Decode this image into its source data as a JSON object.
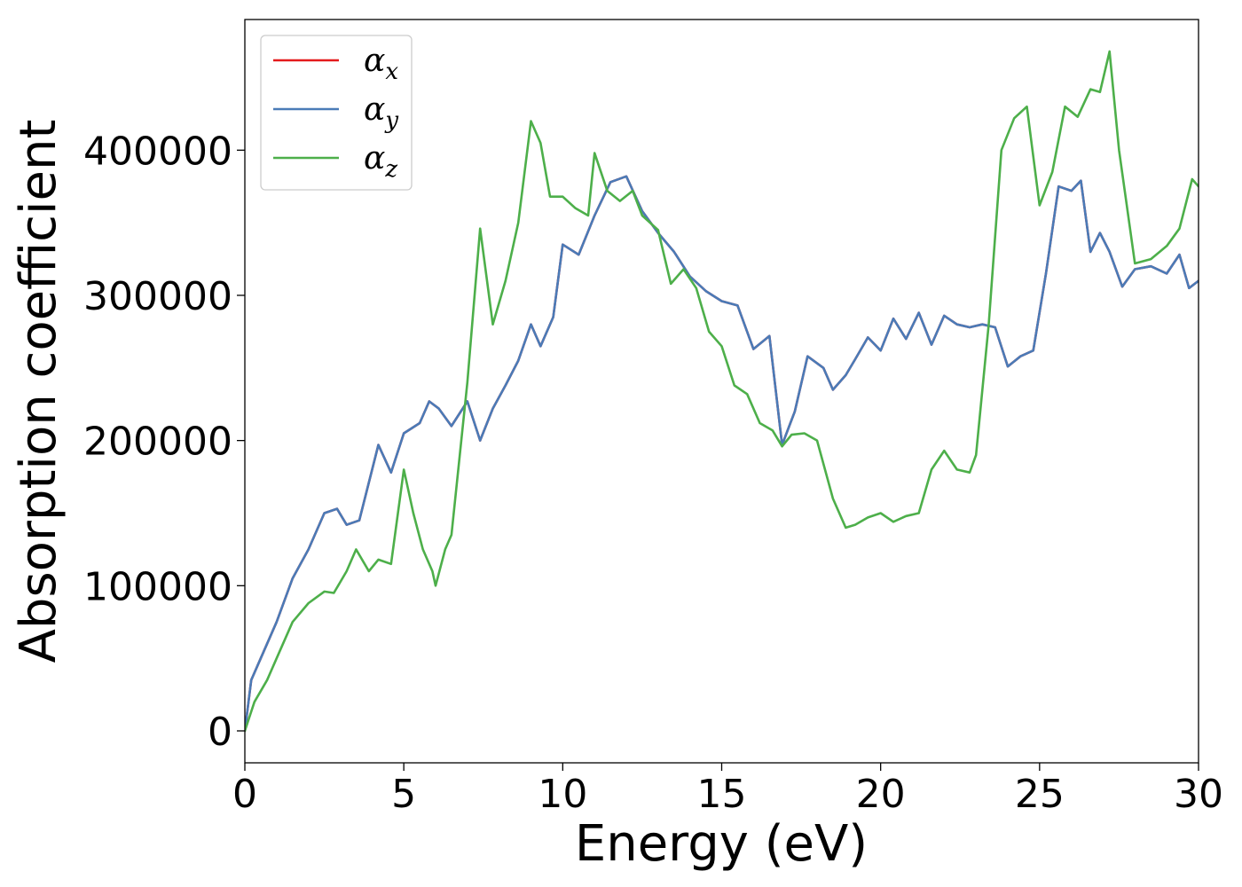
{
  "chart_data": {
    "type": "line",
    "xlabel": "Energy (eV)",
    "ylabel": "Absorption coefficient",
    "xlim": [
      0,
      30
    ],
    "ylim": [
      -22000,
      490000
    ],
    "xticks": [
      0,
      5,
      10,
      15,
      20,
      25,
      30
    ],
    "yticks": [
      0,
      100000,
      200000,
      300000,
      400000
    ],
    "grid": false,
    "legend_placement": "top-left",
    "series": [
      {
        "name": "α_x",
        "name_base": "α",
        "name_sub": "x",
        "color": "#e41a1c",
        "x": [
          0,
          0.2,
          0.5,
          1.0,
          1.5,
          2.0,
          2.5,
          2.9,
          3.2,
          3.6,
          4.2,
          4.6,
          5.0,
          5.5,
          5.8,
          6.1,
          6.5,
          7.0,
          7.4,
          7.8,
          8.2,
          8.6,
          9.0,
          9.3,
          9.7,
          10.0,
          10.5,
          11.0,
          11.5,
          12.0,
          12.5,
          13.0,
          13.5,
          14.0,
          14.5,
          15.0,
          15.5,
          16.0,
          16.5,
          16.9,
          17.3,
          17.7,
          18.2,
          18.5,
          18.9,
          19.2,
          19.6,
          20.0,
          20.4,
          20.8,
          21.2,
          21.6,
          22.0,
          22.4,
          22.8,
          23.2,
          23.6,
          24.0,
          24.4,
          24.8,
          25.2,
          25.6,
          26.0,
          26.3,
          26.6,
          26.9,
          27.2,
          27.6,
          28.0,
          28.5,
          29.0,
          29.4,
          29.7,
          30.0
        ],
        "y": [
          0,
          35000,
          50000,
          75000,
          105000,
          125000,
          150000,
          153000,
          142000,
          145000,
          197000,
          178000,
          205000,
          212000,
          227000,
          222000,
          210000,
          227000,
          200000,
          222000,
          238000,
          255000,
          280000,
          265000,
          285000,
          335000,
          328000,
          355000,
          378000,
          382000,
          358000,
          343000,
          330000,
          313000,
          303000,
          296000,
          293000,
          263000,
          272000,
          197000,
          220000,
          258000,
          250000,
          235000,
          245000,
          256000,
          271000,
          262000,
          284000,
          270000,
          288000,
          266000,
          286000,
          280000,
          278000,
          280000,
          278000,
          251000,
          258000,
          262000,
          315000,
          375000,
          372000,
          379000,
          330000,
          343000,
          330000,
          306000,
          318000,
          320000,
          315000,
          328000,
          305000,
          310000
        ]
      },
      {
        "name": "α_y",
        "name_base": "α",
        "name_sub": "y",
        "color": "#4a7bb7",
        "x": [
          0,
          0.2,
          0.5,
          1.0,
          1.5,
          2.0,
          2.5,
          2.9,
          3.2,
          3.6,
          4.2,
          4.6,
          5.0,
          5.5,
          5.8,
          6.1,
          6.5,
          7.0,
          7.4,
          7.8,
          8.2,
          8.6,
          9.0,
          9.3,
          9.7,
          10.0,
          10.5,
          11.0,
          11.5,
          12.0,
          12.5,
          13.0,
          13.5,
          14.0,
          14.5,
          15.0,
          15.5,
          16.0,
          16.5,
          16.9,
          17.3,
          17.7,
          18.2,
          18.5,
          18.9,
          19.2,
          19.6,
          20.0,
          20.4,
          20.8,
          21.2,
          21.6,
          22.0,
          22.4,
          22.8,
          23.2,
          23.6,
          24.0,
          24.4,
          24.8,
          25.2,
          25.6,
          26.0,
          26.3,
          26.6,
          26.9,
          27.2,
          27.6,
          28.0,
          28.5,
          29.0,
          29.4,
          29.7,
          30.0
        ],
        "y": [
          0,
          35000,
          50000,
          75000,
          105000,
          125000,
          150000,
          153000,
          142000,
          145000,
          197000,
          178000,
          205000,
          212000,
          227000,
          222000,
          210000,
          227000,
          200000,
          222000,
          238000,
          255000,
          280000,
          265000,
          285000,
          335000,
          328000,
          355000,
          378000,
          382000,
          358000,
          343000,
          330000,
          313000,
          303000,
          296000,
          293000,
          263000,
          272000,
          197000,
          220000,
          258000,
          250000,
          235000,
          245000,
          256000,
          271000,
          262000,
          284000,
          270000,
          288000,
          266000,
          286000,
          280000,
          278000,
          280000,
          278000,
          251000,
          258000,
          262000,
          315000,
          375000,
          372000,
          379000,
          330000,
          343000,
          330000,
          306000,
          318000,
          320000,
          315000,
          328000,
          305000,
          310000
        ]
      },
      {
        "name": "α_z",
        "name_base": "α",
        "name_sub": "z",
        "color": "#4daf4a",
        "x": [
          0,
          0.3,
          0.7,
          1.0,
          1.5,
          2.0,
          2.5,
          2.8,
          3.2,
          3.5,
          3.9,
          4.2,
          4.6,
          5.0,
          5.3,
          5.6,
          5.9,
          6.0,
          6.3,
          6.5,
          7.0,
          7.4,
          7.8,
          8.2,
          8.6,
          9.0,
          9.3,
          9.6,
          10.0,
          10.4,
          10.8,
          11.0,
          11.4,
          11.8,
          12.2,
          12.5,
          13.0,
          13.4,
          13.8,
          14.2,
          14.6,
          15.0,
          15.4,
          15.8,
          16.2,
          16.6,
          16.9,
          17.2,
          17.6,
          18.0,
          18.5,
          18.9,
          19.2,
          19.6,
          20.0,
          20.4,
          20.8,
          21.2,
          21.6,
          22.0,
          22.4,
          22.8,
          23.0,
          23.4,
          23.8,
          24.2,
          24.6,
          25.0,
          25.4,
          25.8,
          26.2,
          26.6,
          26.9,
          27.2,
          27.5,
          28.0,
          28.5,
          29.0,
          29.4,
          29.8,
          30.0
        ],
        "y": [
          0,
          20000,
          35000,
          50000,
          75000,
          88000,
          96000,
          95000,
          110000,
          125000,
          110000,
          118000,
          115000,
          180000,
          150000,
          125000,
          110000,
          100000,
          125000,
          135000,
          240000,
          346000,
          280000,
          310000,
          350000,
          420000,
          405000,
          368000,
          368000,
          360000,
          355000,
          398000,
          372000,
          365000,
          372000,
          355000,
          345000,
          308000,
          318000,
          305000,
          275000,
          265000,
          238000,
          232000,
          212000,
          207000,
          196000,
          204000,
          205000,
          200000,
          160000,
          140000,
          142000,
          147000,
          150000,
          144000,
          148000,
          150000,
          180000,
          193000,
          180000,
          178000,
          190000,
          280000,
          400000,
          422000,
          430000,
          362000,
          385000,
          430000,
          423000,
          442000,
          440000,
          468000,
          400000,
          322000,
          325000,
          334000,
          346000,
          380000,
          375000
        ]
      }
    ]
  }
}
